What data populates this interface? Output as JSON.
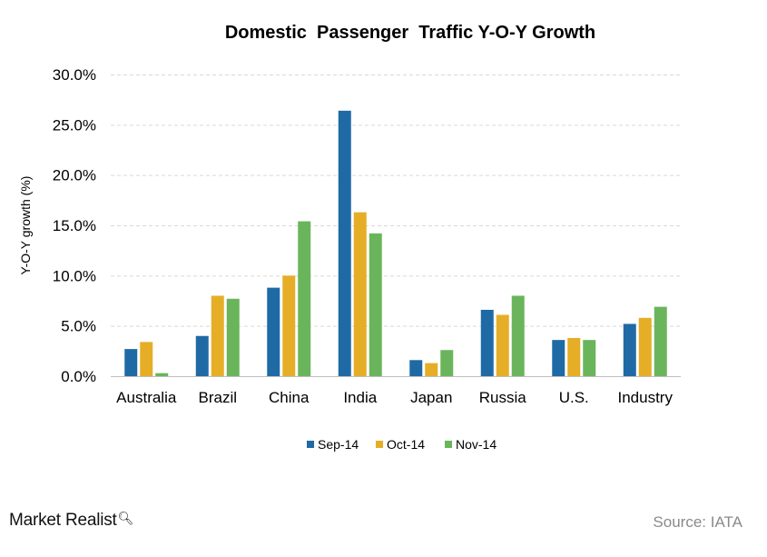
{
  "chart_data": {
    "type": "bar",
    "title": "Domestic  Passenger  Traffic Y-O-Y Growth",
    "ylabel": "Y-O-Y growth (%)",
    "xlabel": "",
    "ylim": [
      0,
      30
    ],
    "yticks": [
      "0.0%",
      "5.0%",
      "10.0%",
      "15.0%",
      "20.0%",
      "25.0%",
      "30.0%"
    ],
    "grid": true,
    "legend_position": "bottom",
    "categories": [
      "Australia",
      "Brazil",
      "China",
      "India",
      "Japan",
      "Russia",
      "U.S.",
      "Industry"
    ],
    "series": [
      {
        "name": "Sep-14",
        "color": "#1f6aa5",
        "values": [
          2.7,
          4.0,
          8.8,
          26.4,
          1.6,
          6.6,
          3.6,
          5.2
        ]
      },
      {
        "name": "Oct-14",
        "color": "#e6ae27",
        "values": [
          3.4,
          8.0,
          10.0,
          16.3,
          1.3,
          6.1,
          3.8,
          5.8
        ]
      },
      {
        "name": "Nov-14",
        "color": "#6ab55c",
        "values": [
          0.3,
          7.7,
          15.4,
          14.2,
          2.6,
          8.0,
          3.6,
          6.9
        ]
      }
    ]
  },
  "footer": {
    "brand": "Market Realist",
    "source": "Source: IATA"
  }
}
